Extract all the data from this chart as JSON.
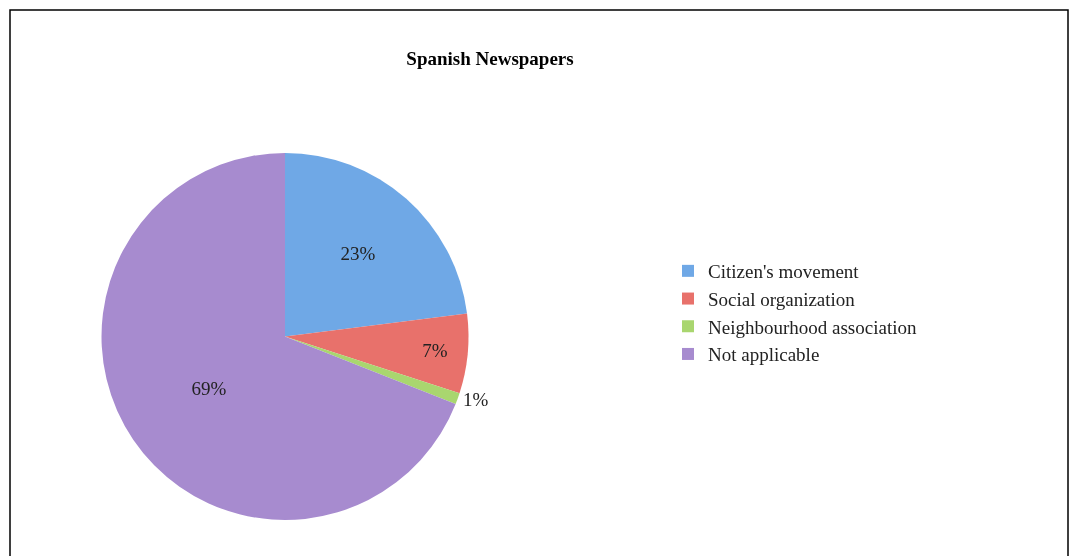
{
  "chart_data": {
    "type": "pie",
    "title": "Spanish Newspapers",
    "categories": [
      "Citizen's movement",
      "Social organization",
      "Neighbourhood association",
      "Not applicable"
    ],
    "values": [
      23,
      7,
      1,
      69
    ],
    "colors": [
      "#6fa8e6",
      "#e8716b",
      "#a9d66f",
      "#a78bcf"
    ],
    "value_labels": [
      "23%",
      "7%",
      "1%",
      "69%"
    ],
    "legend": "right"
  }
}
